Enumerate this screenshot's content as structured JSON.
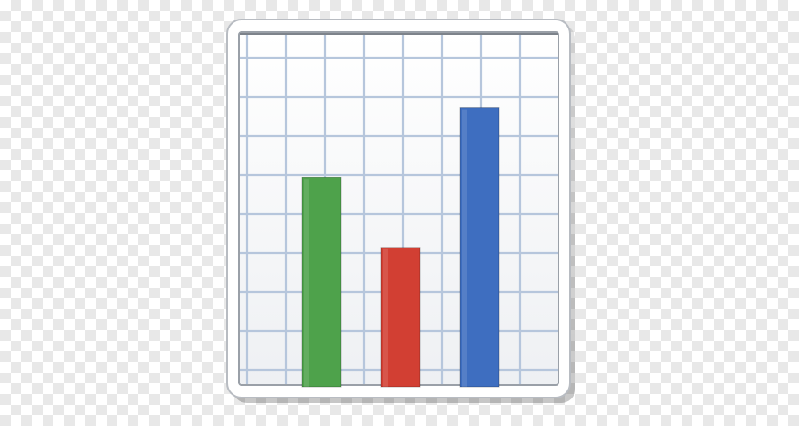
{
  "icon": {
    "name": "bar-chart-emoji",
    "frame_color": "#ffffff",
    "frame_border_color": "#b8bcc2",
    "paper_color": "#f4f5f7",
    "grid_color": "#b6c6dc",
    "grid": true
  },
  "chart_data": {
    "type": "bar",
    "categories": [
      "",
      "",
      ""
    ],
    "values": [
      6,
      4,
      8
    ],
    "ylim": [
      0,
      10
    ],
    "colors": [
      "#4ea24b",
      "#d23f33",
      "#3e6ec0"
    ],
    "grid": true,
    "title": "",
    "xlabel": "",
    "ylabel": ""
  }
}
